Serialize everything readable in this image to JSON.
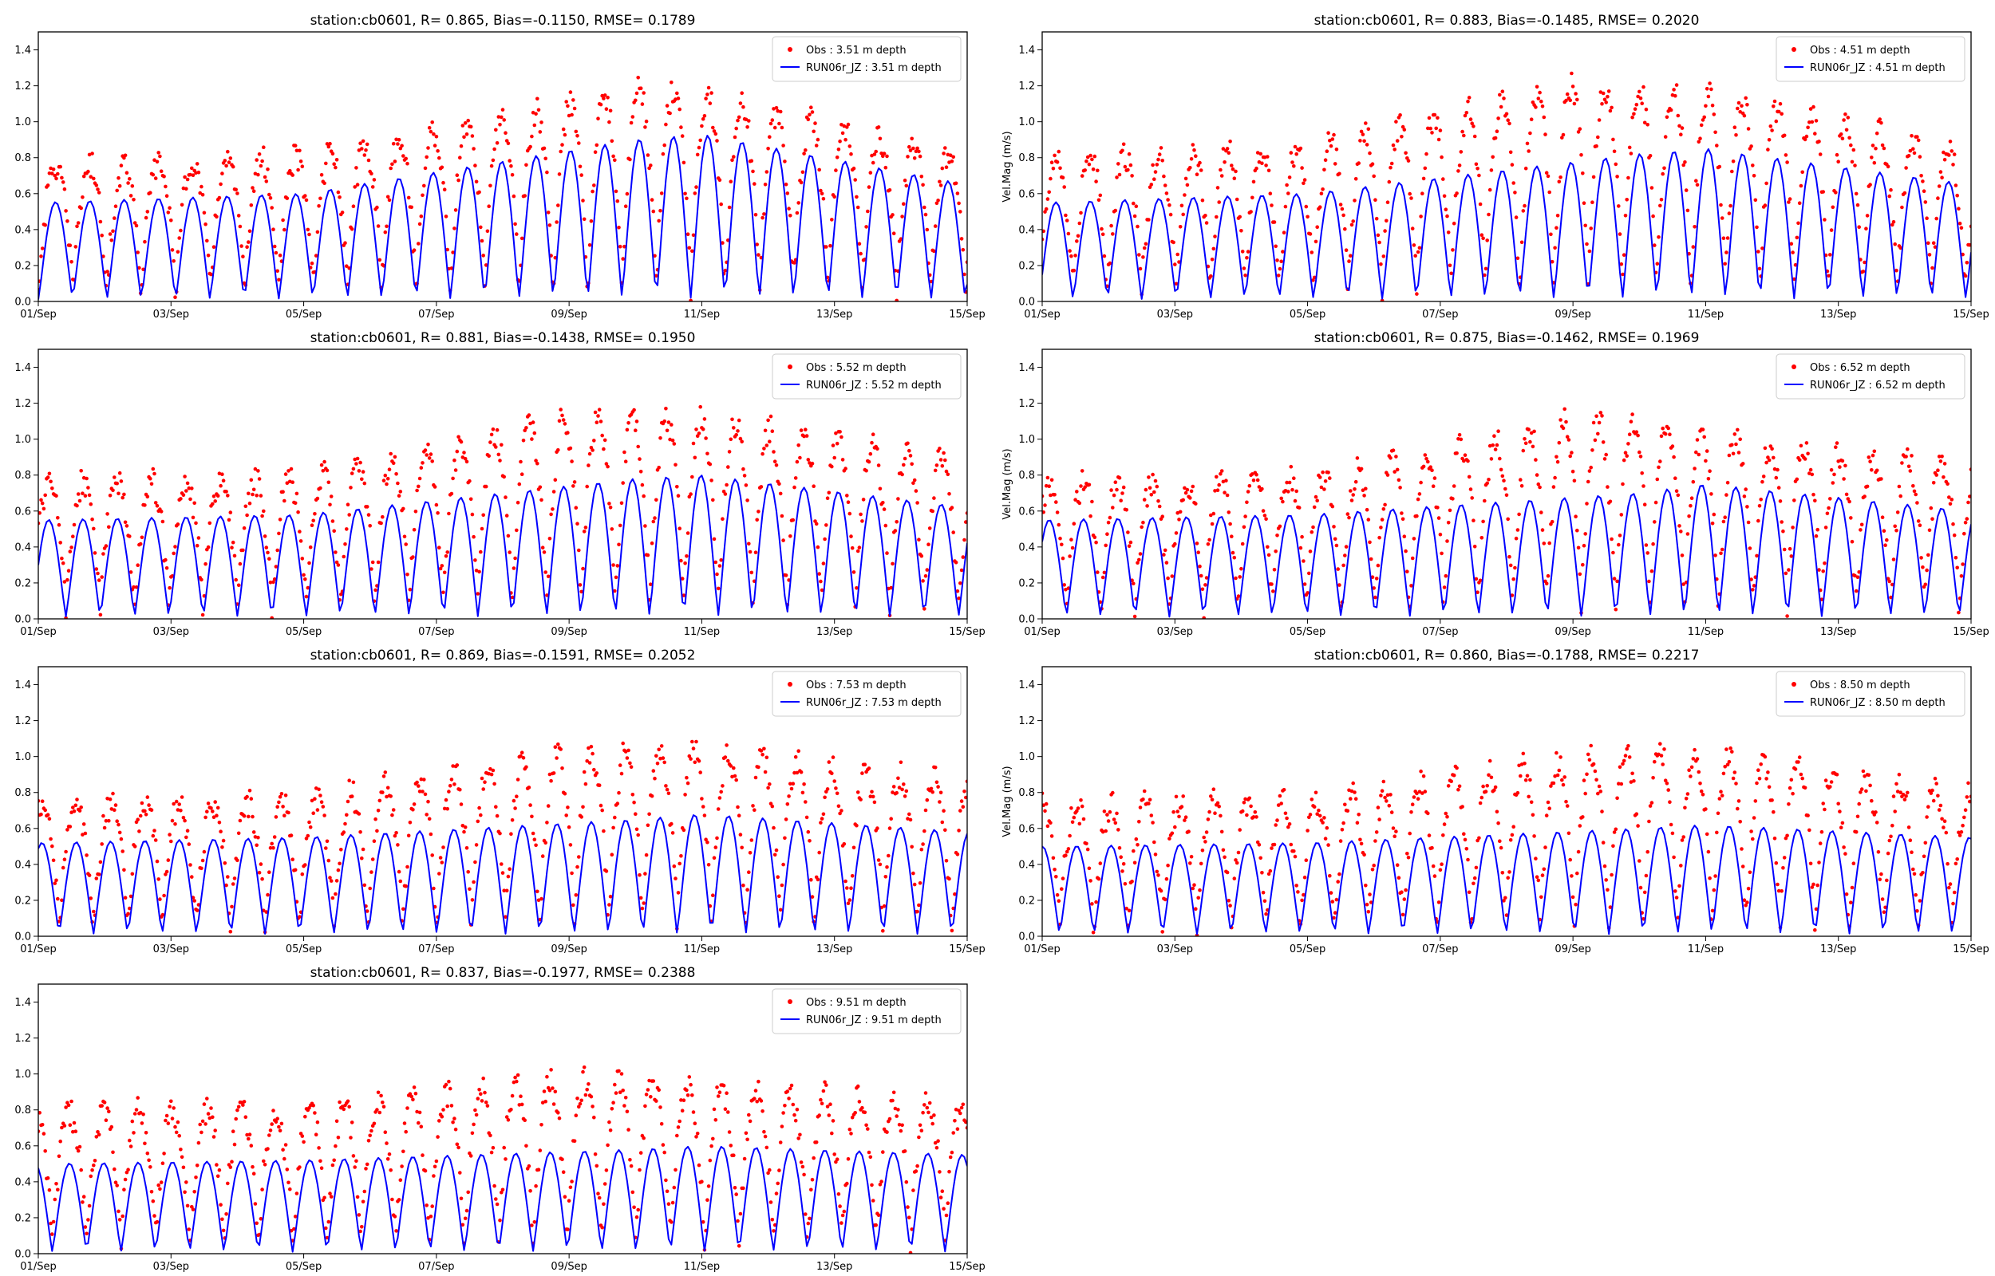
{
  "figure": {
    "colors": {
      "obs": "#ff0000",
      "model": "#0000ff",
      "axes": "#000000",
      "background": "#ffffff"
    }
  },
  "chart_data": [
    {
      "type": "line",
      "title": "station:cb0601, R= 0.865, Bias=-0.1150, RMSE= 0.1789",
      "xlabel": "",
      "ylabel": "",
      "xlim": [
        "2021-09-01",
        "2021-09-15"
      ],
      "ylim": [
        0,
        1.5
      ],
      "x_ticks": [
        "01/Sep",
        "03/Sep",
        "05/Sep",
        "07/Sep",
        "09/Sep",
        "11/Sep",
        "13/Sep",
        "15/Sep"
      ],
      "y_ticks": [
        "0.0",
        "0.2",
        "0.4",
        "0.6",
        "0.8",
        "1.0",
        "1.2",
        "1.4"
      ],
      "legend_position": "top-right",
      "grid": false,
      "series": [
        {
          "name": "Obs : 3.51 m depth",
          "kind": "scatter",
          "color": "#ff0000",
          "sampling_interval_minutes": 30,
          "x": [
            "2021-09-01",
            "2021-09-05",
            "2021-09-09",
            "2021-09-10",
            "2021-09-11",
            "2021-09-15"
          ],
          "values": [
            0.75,
            0.8,
            1.1,
            1.18,
            1.15,
            0.8
          ]
        },
        {
          "name": "RUN06r_JZ : 3.51 m depth",
          "kind": "line",
          "color": "#0000ff",
          "sampling_interval_minutes": 60,
          "x": [
            "2021-09-01",
            "2021-09-05",
            "2021-09-10",
            "2021-09-11",
            "2021-09-15"
          ],
          "values": [
            0.55,
            0.6,
            0.9,
            0.93,
            0.65
          ]
        }
      ]
    },
    {
      "type": "line",
      "title": "station:cb0601, R= 0.883, Bias=-0.1485, RMSE= 0.2020",
      "xlabel": "",
      "ylabel": "Vel.Mag (m/s)",
      "xlim": [
        "2021-09-01",
        "2021-09-15"
      ],
      "ylim": [
        0,
        1.5
      ],
      "x_ticks": [
        "01/Sep",
        "03/Sep",
        "05/Sep",
        "07/Sep",
        "09/Sep",
        "11/Sep",
        "13/Sep",
        "15/Sep"
      ],
      "y_ticks": [
        "0.0",
        "0.2",
        "0.4",
        "0.6",
        "0.8",
        "1.0",
        "1.2",
        "1.4"
      ],
      "legend_position": "top-right",
      "grid": false,
      "series": [
        {
          "name": "Obs : 4.51 m depth",
          "kind": "scatter",
          "color": "#ff0000",
          "sampling_interval_minutes": 30,
          "x": [
            "2021-09-01",
            "2021-09-05",
            "2021-09-09",
            "2021-09-10",
            "2021-09-11",
            "2021-09-15"
          ],
          "values": [
            0.78,
            0.85,
            1.2,
            1.18,
            1.16,
            0.82
          ]
        },
        {
          "name": "RUN06r_JZ : 4.51 m depth",
          "kind": "line",
          "color": "#0000ff",
          "sampling_interval_minutes": 60,
          "x": [
            "2021-09-01",
            "2021-09-05",
            "2021-09-10",
            "2021-09-11",
            "2021-09-15"
          ],
          "values": [
            0.55,
            0.6,
            0.82,
            0.85,
            0.65
          ]
        }
      ]
    },
    {
      "type": "line",
      "title": "station:cb0601, R= 0.881, Bias=-0.1438, RMSE= 0.1950",
      "xlabel": "",
      "ylabel": "",
      "xlim": [
        "2021-09-01",
        "2021-09-15"
      ],
      "ylim": [
        0,
        1.5
      ],
      "x_ticks": [
        "01/Sep",
        "03/Sep",
        "05/Sep",
        "07/Sep",
        "09/Sep",
        "11/Sep",
        "13/Sep",
        "15/Sep"
      ],
      "y_ticks": [
        "0.0",
        "0.2",
        "0.4",
        "0.6",
        "0.8",
        "1.0",
        "1.2",
        "1.4"
      ],
      "legend_position": "top-right",
      "grid": false,
      "series": [
        {
          "name": "Obs : 5.52 m depth",
          "kind": "scatter",
          "color": "#ff0000",
          "sampling_interval_minutes": 30,
          "x": [
            "2021-09-01",
            "2021-09-05",
            "2021-09-09",
            "2021-09-10",
            "2021-09-11",
            "2021-09-15"
          ],
          "values": [
            0.75,
            0.78,
            1.13,
            1.1,
            1.12,
            0.86
          ]
        },
        {
          "name": "RUN06r_JZ : 5.52 m depth",
          "kind": "line",
          "color": "#0000ff",
          "sampling_interval_minutes": 60,
          "x": [
            "2021-09-01",
            "2021-09-05",
            "2021-09-10",
            "2021-09-11",
            "2021-09-15"
          ],
          "values": [
            0.55,
            0.58,
            0.78,
            0.8,
            0.62
          ]
        }
      ]
    },
    {
      "type": "line",
      "title": "station:cb0601, R= 0.875, Bias=-0.1462, RMSE= 0.1969",
      "xlabel": "",
      "ylabel": "Vel.Mag (m/s)",
      "xlim": [
        "2021-09-01",
        "2021-09-15"
      ],
      "ylim": [
        0,
        1.5
      ],
      "x_ticks": [
        "01/Sep",
        "03/Sep",
        "05/Sep",
        "07/Sep",
        "09/Sep",
        "11/Sep",
        "13/Sep",
        "15/Sep"
      ],
      "y_ticks": [
        "0.0",
        "0.2",
        "0.4",
        "0.6",
        "0.8",
        "1.0",
        "1.2",
        "1.4"
      ],
      "legend_position": "top-right",
      "grid": false,
      "series": [
        {
          "name": "Obs : 6.52 m depth",
          "kind": "scatter",
          "color": "#ff0000",
          "sampling_interval_minutes": 30,
          "x": [
            "2021-09-01",
            "2021-09-05",
            "2021-09-09",
            "2021-09-10",
            "2021-09-11",
            "2021-09-15"
          ],
          "values": [
            0.75,
            0.78,
            1.1,
            1.1,
            1.0,
            0.85
          ]
        },
        {
          "name": "RUN06r_JZ : 6.52 m depth",
          "kind": "line",
          "color": "#0000ff",
          "sampling_interval_minutes": 60,
          "x": [
            "2021-09-01",
            "2021-09-05",
            "2021-09-10",
            "2021-09-11",
            "2021-09-15"
          ],
          "values": [
            0.55,
            0.58,
            0.7,
            0.75,
            0.6
          ]
        }
      ]
    },
    {
      "type": "line",
      "title": "station:cb0601, R= 0.869, Bias=-0.1591, RMSE= 0.2052",
      "xlabel": "",
      "ylabel": "",
      "xlim": [
        "2021-09-01",
        "2021-09-15"
      ],
      "ylim": [
        0,
        1.5
      ],
      "x_ticks": [
        "01/Sep",
        "03/Sep",
        "05/Sep",
        "07/Sep",
        "09/Sep",
        "11/Sep",
        "13/Sep",
        "15/Sep"
      ],
      "y_ticks": [
        "0.0",
        "0.2",
        "0.4",
        "0.6",
        "0.8",
        "1.0",
        "1.2",
        "1.4"
      ],
      "legend_position": "top-right",
      "grid": false,
      "series": [
        {
          "name": "Obs : 7.53 m depth",
          "kind": "scatter",
          "color": "#ff0000",
          "sampling_interval_minutes": 30,
          "x": [
            "2021-09-01",
            "2021-09-05",
            "2021-09-09",
            "2021-09-10",
            "2021-09-11",
            "2021-09-15"
          ],
          "values": [
            0.72,
            0.75,
            1.02,
            1.03,
            1.03,
            0.85
          ]
        },
        {
          "name": "RUN06r_JZ : 7.53 m depth",
          "kind": "line",
          "color": "#0000ff",
          "sampling_interval_minutes": 60,
          "x": [
            "2021-09-01",
            "2021-09-05",
            "2021-09-10",
            "2021-09-11",
            "2021-09-15"
          ],
          "values": [
            0.52,
            0.55,
            0.65,
            0.68,
            0.58
          ]
        }
      ]
    },
    {
      "type": "line",
      "title": "station:cb0601, R= 0.860, Bias=-0.1788, RMSE= 0.2217",
      "xlabel": "",
      "ylabel": "Vel.Mag (m/s)",
      "xlim": [
        "2021-09-01",
        "2021-09-15"
      ],
      "ylim": [
        0,
        1.5
      ],
      "x_ticks": [
        "01/Sep",
        "03/Sep",
        "05/Sep",
        "07/Sep",
        "09/Sep",
        "11/Sep",
        "13/Sep",
        "15/Sep"
      ],
      "y_ticks": [
        "0.0",
        "0.2",
        "0.4",
        "0.6",
        "0.8",
        "1.0",
        "1.2",
        "1.4"
      ],
      "legend_position": "top-right",
      "grid": false,
      "series": [
        {
          "name": "Obs : 8.50 m depth",
          "kind": "scatter",
          "color": "#ff0000",
          "sampling_interval_minutes": 30,
          "x": [
            "2021-09-01",
            "2021-09-05",
            "2021-09-09",
            "2021-09-10",
            "2021-09-11",
            "2021-09-15"
          ],
          "values": [
            0.72,
            0.75,
            0.98,
            1.01,
            1.02,
            0.8
          ]
        },
        {
          "name": "RUN06r_JZ : 8.50 m depth",
          "kind": "line",
          "color": "#0000ff",
          "sampling_interval_minutes": 60,
          "x": [
            "2021-09-01",
            "2021-09-05",
            "2021-09-10",
            "2021-09-11",
            "2021-09-15"
          ],
          "values": [
            0.5,
            0.52,
            0.6,
            0.62,
            0.55
          ]
        }
      ]
    },
    {
      "type": "line",
      "title": "station:cb0601, R= 0.837, Bias=-0.1977, RMSE= 0.2388",
      "xlabel": "",
      "ylabel": "",
      "xlim": [
        "2021-09-01",
        "2021-09-15"
      ],
      "ylim": [
        0,
        1.5
      ],
      "x_ticks": [
        "01/Sep",
        "03/Sep",
        "05/Sep",
        "07/Sep",
        "09/Sep",
        "11/Sep",
        "13/Sep",
        "15/Sep"
      ],
      "y_ticks": [
        "0.0",
        "0.2",
        "0.4",
        "0.6",
        "0.8",
        "1.0",
        "1.2",
        "1.4"
      ],
      "legend_position": "top-right",
      "grid": false,
      "series": [
        {
          "name": "Obs : 9.51 m depth",
          "kind": "scatter",
          "color": "#ff0000",
          "sampling_interval_minutes": 30,
          "x": [
            "2021-09-01",
            "2021-09-05",
            "2021-09-09",
            "2021-09-10",
            "2021-09-11",
            "2021-09-15"
          ],
          "values": [
            0.78,
            0.8,
            0.96,
            0.95,
            0.93,
            0.82
          ]
        },
        {
          "name": "RUN06r_JZ : 9.51 m depth",
          "kind": "line",
          "color": "#0000ff",
          "sampling_interval_minutes": 60,
          "x": [
            "2021-09-01",
            "2021-09-05",
            "2021-09-10",
            "2021-09-11",
            "2021-09-15"
          ],
          "values": [
            0.5,
            0.52,
            0.58,
            0.6,
            0.55
          ]
        }
      ]
    }
  ]
}
